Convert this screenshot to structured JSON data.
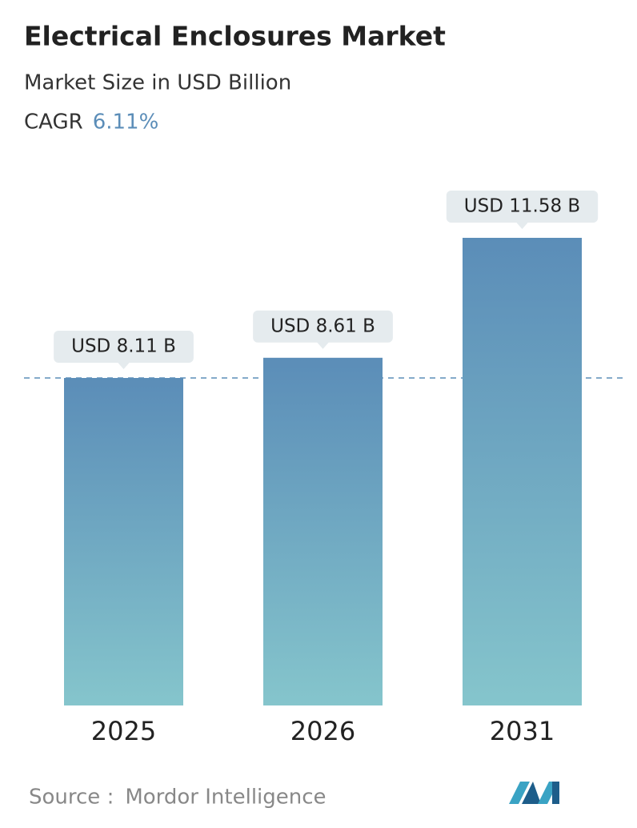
{
  "chart_data": {
    "type": "bar",
    "title": "Electrical Enclosures Market",
    "subtitle": "Market Size in USD Billion",
    "cagr_label": "CAGR",
    "cagr_value": "6.11%",
    "categories": [
      "2025",
      "2026",
      "2031"
    ],
    "values": [
      8.11,
      8.61,
      11.58
    ],
    "value_labels": [
      "USD 8.11 B",
      "USD 8.61 B",
      "USD 11.58 B"
    ],
    "color": [
      "#5b8db8",
      "#85c5cc"
    ],
    "source_label": "Source :",
    "source": "Mordor Intelligence"
  }
}
